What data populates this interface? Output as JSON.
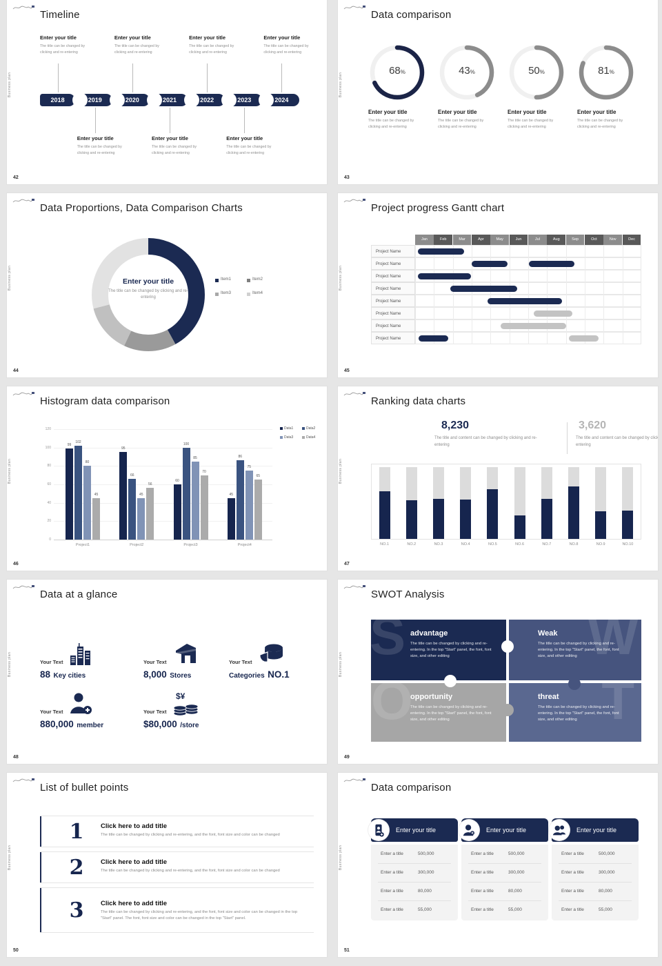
{
  "page": {
    "background": "#E6E6E6",
    "slide_background": "#FFFFFF"
  },
  "colors": {
    "accent": "#1B2A52",
    "navy_dark": "#16254E",
    "gray_bar": "#C3C3C3",
    "gray_track": "#F0F0F0",
    "gray_arc": "#8C8C8C",
    "text_gray": "#8C8C8C"
  },
  "brand": {
    "vertical_text": "Business plan"
  },
  "common": {
    "callout_title": "Enter your title",
    "callout_desc1": "The title can be changed by",
    "callout_desc2": "clicking and re-entering",
    "pct_symbol": "%"
  },
  "slides": {
    "s42": {
      "number": "42",
      "title": "Timeline",
      "years": [
        "2018",
        "2019",
        "2020",
        "2021",
        "2022",
        "2023",
        "2024"
      ]
    },
    "s43": {
      "number": "43",
      "title": "Data comparison",
      "rings": [
        {
          "value": "68",
          "pct": 68,
          "color": "#1B2447"
        },
        {
          "value": "43",
          "pct": 43,
          "color": "#8C8C8C"
        },
        {
          "value": "50",
          "pct": 50,
          "color": "#8C8C8C"
        },
        {
          "value": "81",
          "pct": 81,
          "color": "#8C8C8C"
        }
      ]
    },
    "s44": {
      "number": "44",
      "title": "Data Proportions, Data Comparison Charts",
      "center_title": "Enter your title",
      "center_desc": "The title can be changed by clicking and re-entering",
      "segments": [
        {
          "label": "Item1",
          "value": 42,
          "color": "#1B2A52"
        },
        {
          "label": "Item2",
          "value": 15,
          "color": "#9A9A9A"
        },
        {
          "label": "Item3",
          "value": 14,
          "color": "#C0C0C0"
        },
        {
          "label": "Item4",
          "value": 29,
          "color": "#E2E2E2"
        }
      ],
      "legend_colors": [
        "#1B2A52",
        "#7F7F7F",
        "#A8A8A8",
        "#D0D0D0"
      ]
    },
    "s45": {
      "number": "45",
      "title": "Project progress Gantt chart",
      "months": [
        "Jan",
        "Feb",
        "Mar",
        "Apr",
        "May",
        "Jun",
        "Jul",
        "Aug",
        "Sep",
        "Oct",
        "Nov",
        "Dec"
      ],
      "month_colors": [
        "#8C8C8C",
        "#595959"
      ],
      "row_label": "Project Name",
      "row_count": 8,
      "bars": [
        {
          "row": 0,
          "start": 0.15,
          "end": 2.6,
          "color": "#1B2A52"
        },
        {
          "row": 1,
          "start": 3.0,
          "end": 4.9,
          "color": "#1B2A52"
        },
        {
          "row": 1,
          "start": 6.05,
          "end": 8.45,
          "color": "#1B2A52"
        },
        {
          "row": 2,
          "start": 0.15,
          "end": 2.95,
          "color": "#1B2A52"
        },
        {
          "row": 3,
          "start": 1.85,
          "end": 5.4,
          "color": "#1B2A52"
        },
        {
          "row": 4,
          "start": 3.85,
          "end": 7.8,
          "color": "#1B2A52"
        },
        {
          "row": 5,
          "start": 6.3,
          "end": 8.35,
          "color": "#C3C3C3"
        },
        {
          "row": 6,
          "start": 4.55,
          "end": 8.0,
          "color": "#C3C3C3"
        },
        {
          "row": 7,
          "start": 0.2,
          "end": 1.75,
          "color": "#1B2A52"
        },
        {
          "row": 7,
          "start": 8.15,
          "end": 9.75,
          "color": "#C3C3C3"
        }
      ]
    },
    "s46": {
      "number": "46",
      "title": "Histogram data comparison",
      "chart_data": {
        "type": "bar",
        "ylim": [
          0,
          120
        ]
      },
      "y_ticks": [
        0,
        20,
        40,
        60,
        80,
        100,
        120
      ],
      "categories": [
        "Project1",
        "Project2",
        "Project3",
        "Project4"
      ],
      "series": [
        {
          "name": "Data1",
          "color": "#16254E",
          "values": [
            99,
            95,
            60,
            45
          ]
        },
        {
          "name": "Data2",
          "color": "#3A5380",
          "values": [
            102,
            66,
            100,
            86
          ]
        },
        {
          "name": "Data3",
          "color": "#8093B6",
          "values": [
            80,
            45,
            85,
            75
          ]
        },
        {
          "name": "Data4",
          "color": "#ABABAB",
          "values": [
            45,
            56,
            70,
            65
          ]
        }
      ]
    },
    "s47": {
      "number": "47",
      "title": "Ranking data charts",
      "stat1": {
        "value": "8,230",
        "desc": "The title and content can be changed by clicking and re-entering"
      },
      "stat2": {
        "value": "3,620",
        "desc": "The title and content can be changed by clicking and re-entering"
      },
      "bars": [
        {
          "label": "NO.1",
          "pct": 66
        },
        {
          "label": "NO.2",
          "pct": 54
        },
        {
          "label": "NO.3",
          "pct": 56
        },
        {
          "label": "NO.4",
          "pct": 55
        },
        {
          "label": "NO.5",
          "pct": 69
        },
        {
          "label": "NO.6",
          "pct": 33
        },
        {
          "label": "NO.7",
          "pct": 56
        },
        {
          "label": "NO.8",
          "pct": 73
        },
        {
          "label": "NO.9",
          "pct": 38
        },
        {
          "label": "NO.10",
          "pct": 39
        }
      ]
    },
    "s48": {
      "number": "48",
      "title": "Data at a glance",
      "items": [
        {
          "label": "Your Text",
          "value": "88",
          "unit": "Key cities",
          "unit_first": false,
          "icon": "city"
        },
        {
          "label": "Your Text",
          "value": "8,000",
          "unit": "Stores",
          "unit_first": false,
          "icon": "store"
        },
        {
          "label": "Your Text",
          "value": "NO.1",
          "unit": "Categories",
          "unit_first": true,
          "icon": "pie"
        },
        {
          "label": "Your Text",
          "value": "880,000",
          "unit": "member",
          "unit_first": false,
          "icon": "member"
        },
        {
          "label": "Your Text",
          "value": "$80,000",
          "unit": "/store",
          "unit_first": false,
          "icon": "coins"
        }
      ]
    },
    "s49": {
      "number": "49",
      "title": "SWOT Analysis",
      "body_text": "The title can be changed by clicking and re-entering. In the top \"Start\" panel, the font, font size, and other editing",
      "quads": [
        {
          "letter": "S",
          "title": "advantage",
          "color": "#1B2A52"
        },
        {
          "letter": "W",
          "title": "Weak",
          "color": "#46547E"
        },
        {
          "letter": "O",
          "title": "opportunity",
          "color": "#A6A6A6"
        },
        {
          "letter": "T",
          "title": "threat",
          "color": "#5A6890"
        }
      ]
    },
    "s50": {
      "number": "50",
      "title": "List of bullet points",
      "items": [
        {
          "num": "1",
          "title": "Click here to add title",
          "desc": "The title can be changed by clicking and re-entering, and the font, font size and color can be changed"
        },
        {
          "num": "2",
          "title": "Click here to add title",
          "desc": "The title can be changed by clicking and re-entering, and the font, font size and color can be changed"
        },
        {
          "num": "3",
          "title": "Click here to add title",
          "desc": "The title can be changed by clicking and re-entering, and the font, font size and color can be changed in the top \"Start\" panel. The font, font size and color can be changed in the top \"Start\" panel."
        }
      ]
    },
    "s51": {
      "number": "51",
      "title": "Data comparison",
      "cards": [
        {
          "title": "Enter your title",
          "icon": "phone",
          "rows": [
            {
              "label": "Enter a title",
              "value": "500,000"
            },
            {
              "label": "Enter a title",
              "value": "300,000"
            },
            {
              "label": "Enter a title",
              "value": "80,000"
            },
            {
              "label": "Enter a title",
              "value": "55,000"
            }
          ]
        },
        {
          "title": "Enter your title",
          "icon": "person",
          "rows": [
            {
              "label": "Enter a title",
              "value": "500,000"
            },
            {
              "label": "Enter a title",
              "value": "300,000"
            },
            {
              "label": "Enter a title",
              "value": "80,000"
            },
            {
              "label": "Enter a title",
              "value": "55,000"
            }
          ]
        },
        {
          "title": "Enter your title",
          "icon": "people",
          "rows": [
            {
              "label": "Enter a title",
              "value": "500,000"
            },
            {
              "label": "Enter a title",
              "value": "300,000"
            },
            {
              "label": "Enter a title",
              "value": "80,000"
            },
            {
              "label": "Enter a title",
              "value": "55,000"
            }
          ]
        }
      ]
    }
  }
}
